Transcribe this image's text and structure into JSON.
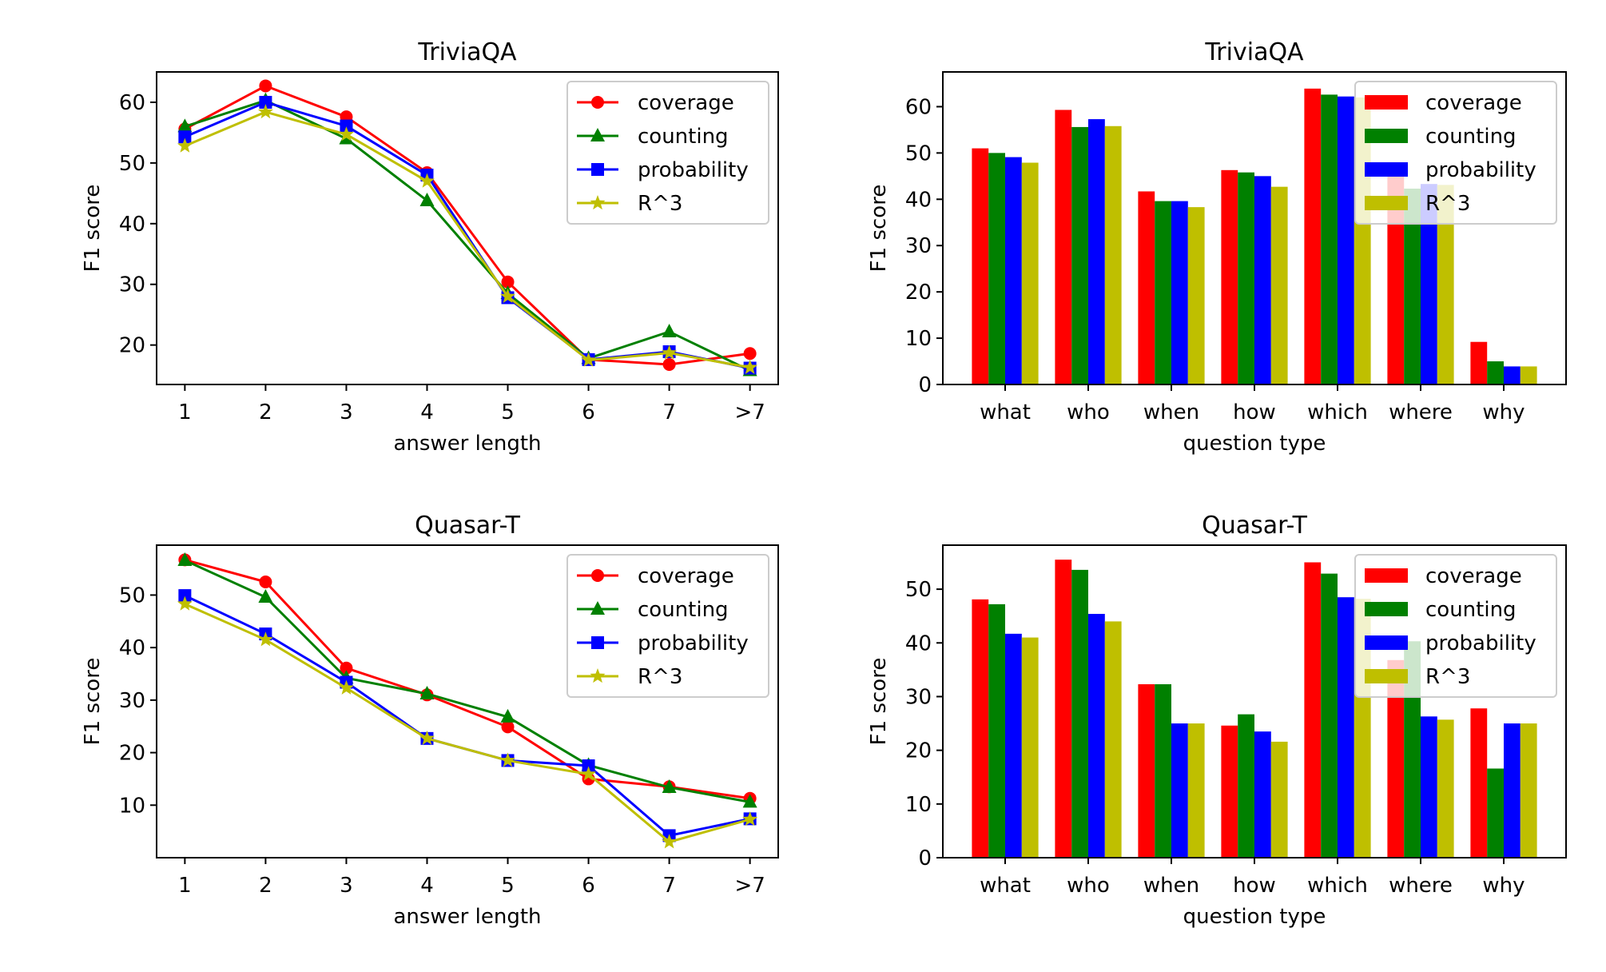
{
  "chart_data": [
    {
      "type": "line",
      "title": "TriviaQA",
      "xlabel": "answer length",
      "ylabel": "F1 score",
      "categories": [
        "1",
        "2",
        "3",
        "4",
        "5",
        "6",
        "7",
        ">7"
      ],
      "ylim": [
        13.5,
        65
      ],
      "yticks": [
        20,
        30,
        40,
        50,
        60
      ],
      "legend_position": "top-right",
      "series": [
        {
          "name": "coverage",
          "color": "#ff0000",
          "marker": "circle",
          "values": [
            55.6,
            62.7,
            57.6,
            48.4,
            30.4,
            17.6,
            16.8,
            18.6
          ]
        },
        {
          "name": "counting",
          "color": "#008000",
          "marker": "triangle",
          "values": [
            56.0,
            60.3,
            54.0,
            43.8,
            28.5,
            17.8,
            22.2,
            15.8
          ]
        },
        {
          "name": "probability",
          "color": "#0000ff",
          "marker": "square",
          "values": [
            54.3,
            60.0,
            56.1,
            48.0,
            27.8,
            17.6,
            18.9,
            16.2
          ]
        },
        {
          "name": "R^3",
          "color": "#bfbf00",
          "marker": "star",
          "values": [
            52.8,
            58.4,
            54.7,
            47.0,
            28.0,
            17.5,
            18.7,
            16.3
          ]
        }
      ]
    },
    {
      "type": "bar",
      "title": "TriviaQA",
      "xlabel": "question type",
      "ylabel": "F1 score",
      "categories": [
        "what",
        "who",
        "when",
        "how",
        "which",
        "where",
        "why"
      ],
      "ylim": [
        0,
        67.5
      ],
      "yticks": [
        0,
        10,
        20,
        30,
        40,
        50,
        60
      ],
      "legend_position": "top-right",
      "series": [
        {
          "name": "coverage",
          "color": "#ff0000",
          "values": [
            51.0,
            59.3,
            41.7,
            46.3,
            63.9,
            48.0,
            9.2
          ]
        },
        {
          "name": "counting",
          "color": "#008000",
          "values": [
            50.0,
            55.6,
            39.6,
            45.8,
            62.6,
            42.3,
            5.0
          ]
        },
        {
          "name": "probability",
          "color": "#0000ff",
          "values": [
            49.1,
            57.3,
            39.6,
            45.0,
            62.2,
            43.3,
            3.9
          ]
        },
        {
          "name": "R^3",
          "color": "#bfbf00",
          "values": [
            47.9,
            55.8,
            38.3,
            42.7,
            62.0,
            43.1,
            3.9
          ]
        }
      ]
    },
    {
      "type": "line",
      "title": "Quasar-T",
      "xlabel": "answer length",
      "ylabel": "F1 score",
      "categories": [
        "1",
        "2",
        "3",
        "4",
        "5",
        "6",
        "7",
        ">7"
      ],
      "ylim": [
        0,
        59.5
      ],
      "yticks": [
        10,
        20,
        30,
        40,
        50
      ],
      "legend_position": "top-right",
      "series": [
        {
          "name": "coverage",
          "color": "#ff0000",
          "marker": "circle",
          "values": [
            56.7,
            52.5,
            36.1,
            31.0,
            24.9,
            15.0,
            13.5,
            11.3
          ]
        },
        {
          "name": "counting",
          "color": "#008000",
          "marker": "triangle",
          "values": [
            56.6,
            49.6,
            34.2,
            31.2,
            26.8,
            17.6,
            13.4,
            10.6
          ]
        },
        {
          "name": "probability",
          "color": "#0000ff",
          "marker": "square",
          "values": [
            49.9,
            42.6,
            33.4,
            22.7,
            18.5,
            17.5,
            4.2,
            7.4
          ]
        },
        {
          "name": "R^3",
          "color": "#bfbf00",
          "marker": "star",
          "values": [
            48.3,
            41.5,
            32.3,
            22.7,
            18.5,
            15.9,
            3.0,
            7.3
          ]
        }
      ]
    },
    {
      "type": "bar",
      "title": "Quasar-T",
      "xlabel": "question type",
      "ylabel": "F1 score",
      "categories": [
        "what",
        "who",
        "when",
        "how",
        "which",
        "where",
        "why"
      ],
      "ylim": [
        0,
        58.2
      ],
      "yticks": [
        0,
        10,
        20,
        30,
        40,
        50
      ],
      "legend_position": "top-right",
      "series": [
        {
          "name": "coverage",
          "color": "#ff0000",
          "values": [
            48.1,
            55.5,
            32.3,
            24.6,
            55.0,
            36.8,
            27.8
          ]
        },
        {
          "name": "counting",
          "color": "#008000",
          "values": [
            47.2,
            53.6,
            32.3,
            26.7,
            52.9,
            40.3,
            16.6
          ]
        },
        {
          "name": "probability",
          "color": "#0000ff",
          "values": [
            41.7,
            45.4,
            25.0,
            23.5,
            48.5,
            26.3,
            25.0
          ]
        },
        {
          "name": "R^3",
          "color": "#bfbf00",
          "values": [
            41.0,
            44.0,
            25.0,
            21.6,
            48.2,
            25.7,
            25.0
          ]
        }
      ]
    }
  ]
}
